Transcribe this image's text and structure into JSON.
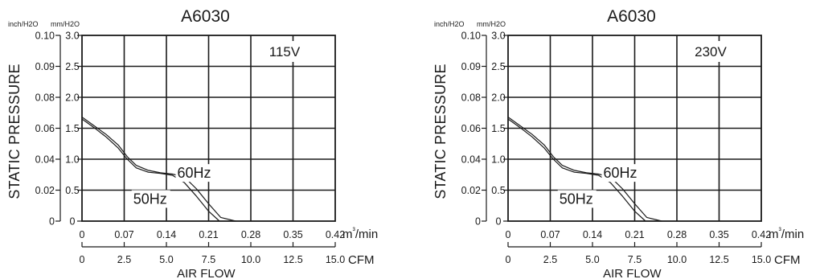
{
  "chart_data": [
    {
      "type": "line",
      "title": "A6030",
      "annotation": "115V",
      "ylabel": "STATIC PRESSURE",
      "xlabel": "AIR FLOW",
      "y_units": [
        "inch/H2O",
        "mm/H2O"
      ],
      "y_ticks_inch": [
        "0.10",
        "0.09",
        "0.08",
        "0.06",
        "0.04",
        "0.02",
        "0"
      ],
      "y_ticks_mm": [
        "3.0",
        "2.5",
        "2.0",
        "1.5",
        "1.0",
        "0.5",
        "0"
      ],
      "x_ticks_m3": [
        "0",
        "0.07",
        "0.14",
        "0.21",
        "0.28",
        "0.35",
        "0.42"
      ],
      "x_unit_m3": "m³/min",
      "x_ticks_cfm": [
        "0",
        "2.5",
        "5.0",
        "7.5",
        "10.0",
        "12.5",
        "15.0"
      ],
      "x_unit_cfm": "CFM",
      "xlim": [
        0,
        0.42
      ],
      "ylim": [
        0,
        3.0
      ],
      "series": [
        {
          "name": "60Hz",
          "x": [
            0,
            0.02,
            0.04,
            0.06,
            0.075,
            0.09,
            0.11,
            0.13,
            0.15,
            0.17,
            0.19,
            0.21,
            0.23,
            0.255
          ],
          "y": [
            1.68,
            1.54,
            1.4,
            1.23,
            1.04,
            0.9,
            0.82,
            0.78,
            0.76,
            0.71,
            0.52,
            0.28,
            0.06,
            0
          ]
        },
        {
          "name": "50Hz",
          "x": [
            0,
            0.02,
            0.04,
            0.06,
            0.075,
            0.09,
            0.11,
            0.13,
            0.15,
            0.17,
            0.19,
            0.21,
            0.228
          ],
          "y": [
            1.65,
            1.51,
            1.36,
            1.18,
            1.0,
            0.86,
            0.79,
            0.77,
            0.74,
            0.62,
            0.4,
            0.16,
            0
          ]
        }
      ],
      "series_labels": {
        "60Hz": {
          "x": 0.158,
          "y": 0.7
        },
        "50Hz": {
          "x": 0.085,
          "y": 0.28
        }
      }
    },
    {
      "type": "line",
      "title": "A6030",
      "annotation": "230V",
      "ylabel": "STATIC PRESSURE",
      "xlabel": "AIR FLOW",
      "y_units": [
        "inch/H2O",
        "mm/H2O"
      ],
      "y_ticks_inch": [
        "0.10",
        "0.09",
        "0.08",
        "0.06",
        "0.04",
        "0.02",
        "0"
      ],
      "y_ticks_mm": [
        "3.0",
        "2.5",
        "2.0",
        "1.5",
        "1.0",
        "0.5",
        "0"
      ],
      "x_ticks_m3": [
        "0",
        "0.07",
        "0.14",
        "0.21",
        "0.28",
        "0.35",
        "0.42"
      ],
      "x_unit_m3": "m³/min",
      "x_ticks_cfm": [
        "0",
        "2.5",
        "5.0",
        "7.5",
        "10.0",
        "12.5",
        "15.0"
      ],
      "x_unit_cfm": "CFM",
      "xlim": [
        0,
        0.42
      ],
      "ylim": [
        0,
        3.0
      ],
      "series": [
        {
          "name": "60Hz",
          "x": [
            0,
            0.02,
            0.04,
            0.06,
            0.075,
            0.09,
            0.11,
            0.13,
            0.15,
            0.17,
            0.19,
            0.21,
            0.23,
            0.255
          ],
          "y": [
            1.68,
            1.54,
            1.4,
            1.23,
            1.04,
            0.9,
            0.82,
            0.78,
            0.76,
            0.71,
            0.52,
            0.28,
            0.06,
            0
          ]
        },
        {
          "name": "50Hz",
          "x": [
            0,
            0.02,
            0.04,
            0.06,
            0.075,
            0.09,
            0.11,
            0.13,
            0.15,
            0.17,
            0.19,
            0.21,
            0.228
          ],
          "y": [
            1.65,
            1.51,
            1.36,
            1.18,
            1.0,
            0.86,
            0.79,
            0.77,
            0.74,
            0.62,
            0.4,
            0.16,
            0
          ]
        }
      ],
      "series_labels": {
        "60Hz": {
          "x": 0.158,
          "y": 0.7
        },
        "50Hz": {
          "x": 0.085,
          "y": 0.28
        }
      }
    }
  ]
}
